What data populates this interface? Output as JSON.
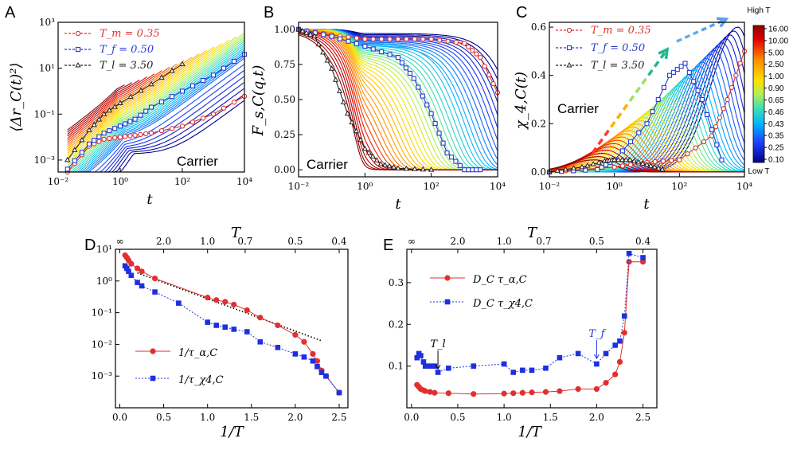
{
  "chart_data": [
    {
      "panel": "A",
      "type": "line",
      "xlabel": "t",
      "ylabel": "⟨Δr_C(t)²⟩",
      "xscale": "log",
      "yscale": "log",
      "xlim": [
        0.01,
        10000
      ],
      "ylim": [
        0.0003,
        1000
      ],
      "xticks": [
        "10⁻²",
        "10⁰",
        "10²",
        "10⁴"
      ],
      "yticks": [
        "10⁻³",
        "10⁻¹",
        "10¹",
        "10³"
      ],
      "annotation": "Carrier",
      "legend": [
        "T_m = 0.35",
        "T_f = 0.50",
        "T_l = 3.50"
      ],
      "highlight": [
        {
          "name": "T_m = 0.35",
          "color": "#e03030",
          "x": [
            0.02,
            0.1,
            0.3,
            1,
            3,
            10,
            100,
            1000,
            10000
          ],
          "y": [
            0.0003,
            0.004,
            0.008,
            0.01,
            0.012,
            0.015,
            0.03,
            0.1,
            0.6
          ]
        },
        {
          "name": "T_f = 0.50",
          "color": "#2b3bd6",
          "x": [
            0.02,
            0.1,
            0.3,
            1,
            3,
            10,
            100,
            1000,
            10000
          ],
          "y": [
            0.0004,
            0.005,
            0.015,
            0.03,
            0.06,
            0.2,
            1,
            5,
            40
          ]
        },
        {
          "name": "T_l = 3.50",
          "color": "#222222",
          "x": [
            0.02,
            0.1,
            0.3,
            1,
            10,
            100
          ],
          "y": [
            0.001,
            0.02,
            0.1,
            0.3,
            2,
            15
          ]
        }
      ]
    },
    {
      "panel": "B",
      "type": "line",
      "xlabel": "t",
      "ylabel": "F_s,C(q,t)",
      "xscale": "log",
      "xlim": [
        0.01,
        10000
      ],
      "ylim": [
        -0.05,
        1.05
      ],
      "xticks": [
        "10⁻²",
        "10⁰",
        "10²",
        "10⁴"
      ],
      "yticks": [
        "0.00",
        "0.25",
        "0.50",
        "0.75",
        "1.00"
      ],
      "annotation": "Carrier",
      "highlight": [
        {
          "name": "T_m = 0.35",
          "color": "#e03030",
          "x": [
            0.01,
            0.1,
            1,
            10,
            100,
            1000,
            3000,
            10000
          ],
          "y": [
            1.0,
            0.96,
            0.93,
            0.93,
            0.93,
            0.9,
            0.8,
            0.55
          ]
        },
        {
          "name": "T_f = 0.50",
          "color": "#2b3bd6",
          "x": [
            0.01,
            0.1,
            1,
            10,
            30,
            100,
            300,
            1000,
            3000
          ],
          "y": [
            1.0,
            0.95,
            0.88,
            0.8,
            0.65,
            0.4,
            0.12,
            0.0,
            0.0
          ]
        },
        {
          "name": "T_l = 3.50",
          "color": "#222222",
          "x": [
            0.01,
            0.03,
            0.1,
            0.3,
            1,
            3,
            10,
            100
          ],
          "y": [
            1.0,
            0.95,
            0.72,
            0.4,
            0.15,
            0.04,
            0.01,
            0.0
          ]
        }
      ]
    },
    {
      "panel": "C",
      "type": "line",
      "xlabel": "t",
      "ylabel": "χ_4,C(t)",
      "xscale": "log",
      "xlim": [
        0.01,
        10000
      ],
      "ylim": [
        -0.02,
        0.62
      ],
      "xticks": [
        "10⁻²",
        "10⁰",
        "10²",
        "10⁴"
      ],
      "yticks": [
        "0.0",
        "0.2",
        "0.4",
        "0.6"
      ],
      "annotation": "Carrier",
      "legend": [
        "T_m = 0.35",
        "T_f = 0.50",
        "T_l = 3.50"
      ],
      "highlight": [
        {
          "name": "T_m = 0.35",
          "color": "#e03030",
          "x": [
            0.01,
            1,
            10,
            100,
            1000,
            3000,
            10000
          ],
          "y": [
            0.0,
            0.02,
            0.04,
            0.05,
            0.15,
            0.3,
            0.5
          ]
        },
        {
          "name": "T_f = 0.50",
          "color": "#2b3bd6",
          "x": [
            0.01,
            0.3,
            1,
            10,
            50,
            150,
            500,
            2000
          ],
          "y": [
            0.0,
            0.01,
            0.05,
            0.2,
            0.4,
            0.45,
            0.3,
            0.05
          ]
        },
        {
          "name": "T_l = 3.50",
          "color": "#222222",
          "x": [
            0.01,
            0.1,
            0.5,
            1,
            3,
            10,
            30
          ],
          "y": [
            0.0,
            0.02,
            0.045,
            0.05,
            0.05,
            0.03,
            0.01
          ]
        }
      ],
      "colorbar": {
        "title": "High T",
        "bottom_label": "Low T",
        "labels": [
          "16.00",
          "10.00",
          "5.00",
          "2.50",
          "1.00",
          "0.90",
          "0.65",
          "0.46",
          "0.43",
          "0.35",
          "0.25",
          "0.10"
        ]
      }
    },
    {
      "panel": "D",
      "type": "line",
      "xlabel": "1/T",
      "top_xlabel": "T",
      "yscale": "log",
      "xlim": [
        -0.05,
        2.6
      ],
      "ylim": [
        0.0001,
        10
      ],
      "xticks": [
        "0.0",
        "0.5",
        "1.0",
        "1.5",
        "2.0",
        "2.5"
      ],
      "top_ticks": [
        "∞",
        "2.0",
        "1.0",
        "0.7",
        "0.5",
        "0.4"
      ],
      "yticks": [
        "10⁻³",
        "10⁻²",
        "10⁻¹",
        "10⁰",
        "10¹"
      ],
      "series": [
        {
          "name": "1/τ_α,C",
          "color": "#e03030",
          "x": [
            0.06,
            0.08,
            0.1,
            0.13,
            0.2,
            0.25,
            0.4,
            1.0,
            1.1,
            1.2,
            1.3,
            1.45,
            1.6,
            1.8,
            2.0,
            2.1,
            2.2,
            2.25,
            2.3,
            2.35,
            2.5
          ],
          "y": [
            6.5,
            5.5,
            4.5,
            3.5,
            2.5,
            2.0,
            1.2,
            0.3,
            0.25,
            0.22,
            0.18,
            0.12,
            0.07,
            0.04,
            0.02,
            0.012,
            0.005,
            0.003,
            0.0015,
            0.001,
            0.0003
          ]
        },
        {
          "name": "1/τ_χ4,C",
          "color": "#1f2fe0",
          "x": [
            0.06,
            0.08,
            0.1,
            0.13,
            0.2,
            0.25,
            0.4,
            0.67,
            1.0,
            1.1,
            1.2,
            1.3,
            1.45,
            1.6,
            1.8,
            2.0,
            2.1,
            2.2,
            2.25,
            2.3,
            2.35,
            2.5
          ],
          "y": [
            3.0,
            2.5,
            2.0,
            1.5,
            0.9,
            0.7,
            0.45,
            0.2,
            0.05,
            0.04,
            0.035,
            0.03,
            0.025,
            0.012,
            0.008,
            0.005,
            0.004,
            0.003,
            0.002,
            0.0013,
            0.001,
            0.0003
          ]
        }
      ],
      "fit_line": {
        "style": "dotted",
        "x": [
          0.2,
          2.3
        ],
        "y": [
          1.8,
          0.013
        ]
      }
    },
    {
      "panel": "E",
      "type": "line",
      "xlabel": "1/T",
      "top_xlabel": "T",
      "xlim": [
        -0.05,
        2.65
      ],
      "ylim": [
        0.0,
        0.38
      ],
      "xticks": [
        "0.0",
        "0.5",
        "1.0",
        "1.5",
        "2.0",
        "2.5"
      ],
      "top_ticks": [
        "∞",
        "2.0",
        "1.0",
        "0.7",
        "0.5",
        "0.4"
      ],
      "yticks": [
        "0.1",
        "0.2",
        "0.3"
      ],
      "annotations": [
        {
          "text": "T_l",
          "x": 0.286,
          "y": 0.08
        },
        {
          "text": "T_f",
          "x": 2.0,
          "y": 0.105
        }
      ],
      "series": [
        {
          "name": "D_C τ_α,C",
          "color": "#e03030",
          "x": [
            0.06,
            0.08,
            0.1,
            0.13,
            0.15,
            0.2,
            0.25,
            0.4,
            0.67,
            1.0,
            1.1,
            1.2,
            1.3,
            1.45,
            1.6,
            1.8,
            2.0,
            2.1,
            2.2,
            2.25,
            2.3,
            2.35,
            2.5
          ],
          "y": [
            0.055,
            0.05,
            0.045,
            0.042,
            0.04,
            0.038,
            0.036,
            0.035,
            0.033,
            0.034,
            0.035,
            0.036,
            0.037,
            0.038,
            0.04,
            0.045,
            0.045,
            0.06,
            0.08,
            0.11,
            0.18,
            0.35,
            0.35
          ]
        },
        {
          "name": "D_C τ_χ4,C",
          "color": "#1f2fe0",
          "x": [
            0.06,
            0.08,
            0.1,
            0.13,
            0.15,
            0.2,
            0.25,
            0.286,
            0.4,
            0.67,
            1.0,
            1.1,
            1.2,
            1.3,
            1.45,
            1.6,
            1.8,
            2.0,
            2.1,
            2.2,
            2.25,
            2.3,
            2.35,
            2.5
          ],
          "y": [
            0.12,
            0.13,
            0.125,
            0.11,
            0.1,
            0.1,
            0.1,
            0.085,
            0.095,
            0.1,
            0.105,
            0.085,
            0.09,
            0.09,
            0.095,
            0.12,
            0.13,
            0.105,
            0.13,
            0.15,
            0.16,
            0.22,
            0.37,
            0.36
          ]
        }
      ]
    }
  ]
}
